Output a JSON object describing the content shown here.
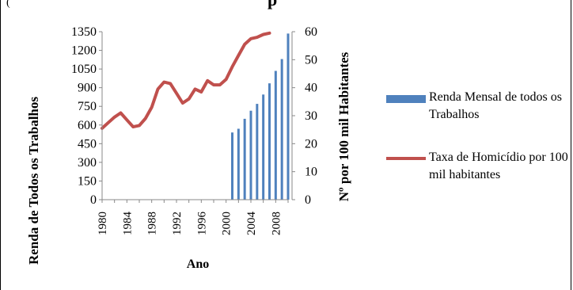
{
  "chart_data": {
    "type": "bar+line",
    "title": "p",
    "top_left_text": "(",
    "xlabel": "Ano",
    "ylabel_left": "Renda de Todos os Trabalhos",
    "ylabel_right": "Nº por 100 mil Habitantes",
    "x_ticks": [
      "1980",
      "1984",
      "1988",
      "1992",
      "1996",
      "2000",
      "2004",
      "2008"
    ],
    "y_left_ticks": [
      "0",
      "150",
      "300",
      "450",
      "600",
      "750",
      "900",
      "1050",
      "1200",
      "1350"
    ],
    "y_right_ticks": [
      "0",
      "10",
      "20",
      "30",
      "40",
      "50",
      "60"
    ],
    "ylim_left": [
      0,
      1350
    ],
    "ylim_right": [
      0,
      60
    ],
    "xlim": [
      1980,
      2010
    ],
    "legend_position": "right",
    "series": [
      {
        "name": "Renda Mensal de todos os Trabalhos",
        "type": "bar",
        "axis": "left",
        "color": "#4f81bd",
        "x": [
          2001,
          2002,
          2003,
          2004,
          2005,
          2006,
          2007,
          2008,
          2009,
          2010
        ],
        "values": [
          540,
          570,
          650,
          715,
          770,
          845,
          935,
          1035,
          1130,
          1335
        ]
      },
      {
        "name": "Taxa de Homicídio por 100 mil habitantes",
        "type": "line",
        "axis": "right",
        "color": "#c0504d",
        "x": [
          1980,
          1981,
          1982,
          1983,
          1984,
          1985,
          1986,
          1987,
          1988,
          1989,
          1990,
          1991,
          1992,
          1993,
          1994,
          1995,
          1996,
          1997,
          1998,
          1999,
          2000,
          2001,
          2002,
          2003,
          2004,
          2005,
          2006,
          2007
        ],
        "values": [
          25.5,
          27.5,
          29.5,
          31,
          28.5,
          26,
          26.5,
          29,
          33,
          39.5,
          42,
          41.5,
          38,
          34.5,
          36,
          39.5,
          38.5,
          42.5,
          41,
          41,
          43,
          47.5,
          51.5,
          55.5,
          57.5,
          58,
          59,
          59.5
        ]
      }
    ]
  }
}
